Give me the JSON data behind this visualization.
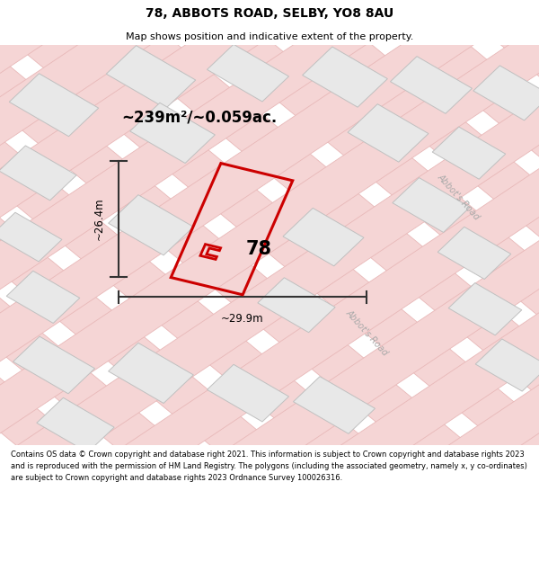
{
  "title": "78, ABBOTS ROAD, SELBY, YO8 8AU",
  "subtitle": "Map shows position and indicative extent of the property.",
  "area_text": "~239m²/~0.059ac.",
  "dim_width": "~29.9m",
  "dim_height": "~26.4m",
  "label": "78",
  "bg_color": "#ffffff",
  "map_bg": "#ffffff",
  "bldg_fill": "#e8e8e8",
  "bldg_edge": "#c0c0c0",
  "road_fill": "#f5d5d5",
  "road_edge": "#e8b8b8",
  "highlight_stroke": "#cc0000",
  "dim_color": "#333333",
  "road_text_color": "#aaaaaa",
  "copyright_text": "Contains OS data © Crown copyright and database right 2021. This information is subject to Crown copyright and database rights 2023 and is reproduced with the permission of HM Land Registry. The polygons (including the associated geometry, namely x, y co-ordinates) are subject to Crown copyright and database rights 2023 Ordnance Survey 100026316."
}
